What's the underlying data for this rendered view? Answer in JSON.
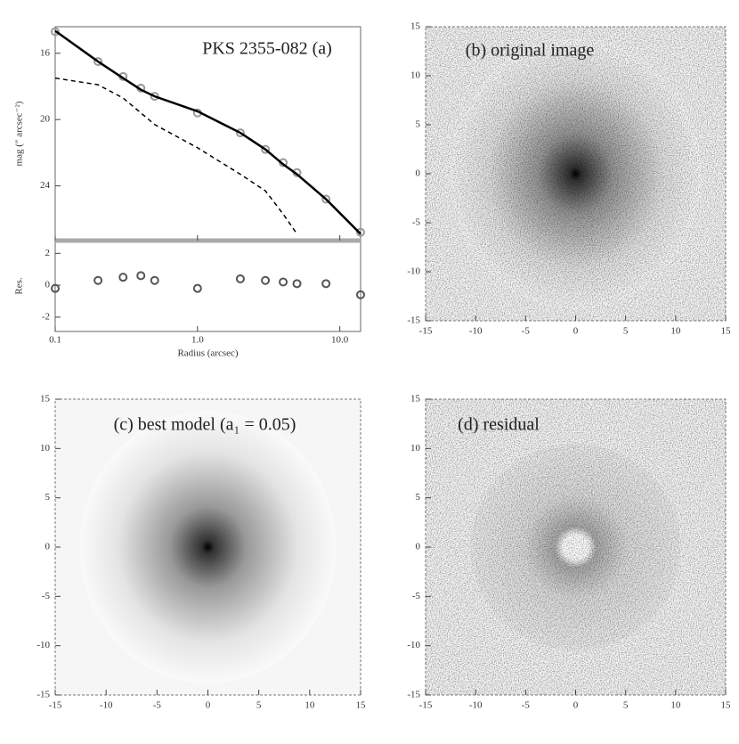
{
  "chart_data": [
    {
      "type": "line",
      "title": "PKS 2355-082 (a)",
      "xlabel": "Radius (arcsec)",
      "ylabel": "mag (″ arcsec⁻²)",
      "y2label": "Res.",
      "xscale": "log",
      "xlim": [
        0.1,
        14
      ],
      "xticks": [
        0.1,
        {
          "value": 1,
          "label": "1.0"
        },
        {
          "value": 10,
          "label": "10.0"
        }
      ],
      "ylim": [
        27.3,
        14.4
      ],
      "yticks": [
        16,
        20,
        24
      ],
      "y2lim": [
        -2.9,
        2.8
      ],
      "y2ticks": [
        2,
        0,
        -2
      ],
      "x": [
        0.1,
        0.2,
        0.3,
        0.4,
        0.5,
        1,
        2,
        3,
        4,
        5,
        8,
        14
      ],
      "series": [
        {
          "style": "markers",
          "color": "#9a9a9a",
          "values": [
            14.7,
            16.5,
            17.4,
            18.1,
            18.6,
            19.6,
            20.8,
            21.8,
            22.6,
            23.2,
            24.8,
            26.8
          ]
        },
        {
          "style": "solid",
          "color": "#000000",
          "values": [
            14.65,
            16.5,
            17.5,
            18.2,
            18.6,
            19.5,
            20.8,
            21.8,
            22.7,
            23.3,
            24.8,
            26.9
          ]
        },
        {
          "style": "dashed",
          "color": "#000000",
          "values": [
            17.5,
            17.9,
            18.7,
            19.6,
            20.3,
            21.7,
            23.3,
            24.3,
            25.7,
            26.9,
            null,
            null
          ]
        },
        {
          "style": "markers",
          "axis": "y2",
          "color": "#555555",
          "values": [
            -0.2,
            0.3,
            0.5,
            0.6,
            0.3,
            -0.2,
            0.4,
            0.3,
            0.2,
            0.1,
            0.1,
            -0.6
          ]
        }
      ]
    },
    {
      "type": "image",
      "title": "(b) original image",
      "profile": "galaxy",
      "noise": true,
      "xlim": [
        -15,
        15
      ],
      "ylim": [
        -15,
        15
      ],
      "xticks": [
        -15,
        -10,
        -5,
        0,
        5,
        10,
        15
      ],
      "yticks": [
        -15,
        -10,
        -5,
        0,
        5,
        10,
        15
      ]
    },
    {
      "type": "image",
      "title": "(c) best model (a₁ = 0.05)",
      "profile": "galaxy",
      "noise": false,
      "xlim": [
        -15,
        15
      ],
      "ylim": [
        -15,
        15
      ],
      "xticks": [
        -15,
        -10,
        -5,
        0,
        5,
        10,
        15
      ],
      "yticks": [
        -15,
        -10,
        -5,
        0,
        5,
        10,
        15
      ]
    },
    {
      "type": "image",
      "title": "(d) residual",
      "profile": "residual",
      "noise": true,
      "xlim": [
        -15,
        15
      ],
      "ylim": [
        -15,
        15
      ],
      "xticks": [
        -15,
        -10,
        -5,
        0,
        5,
        10,
        15
      ],
      "yticks": [
        -15,
        -10,
        -5,
        0,
        5,
        10,
        15
      ]
    }
  ]
}
